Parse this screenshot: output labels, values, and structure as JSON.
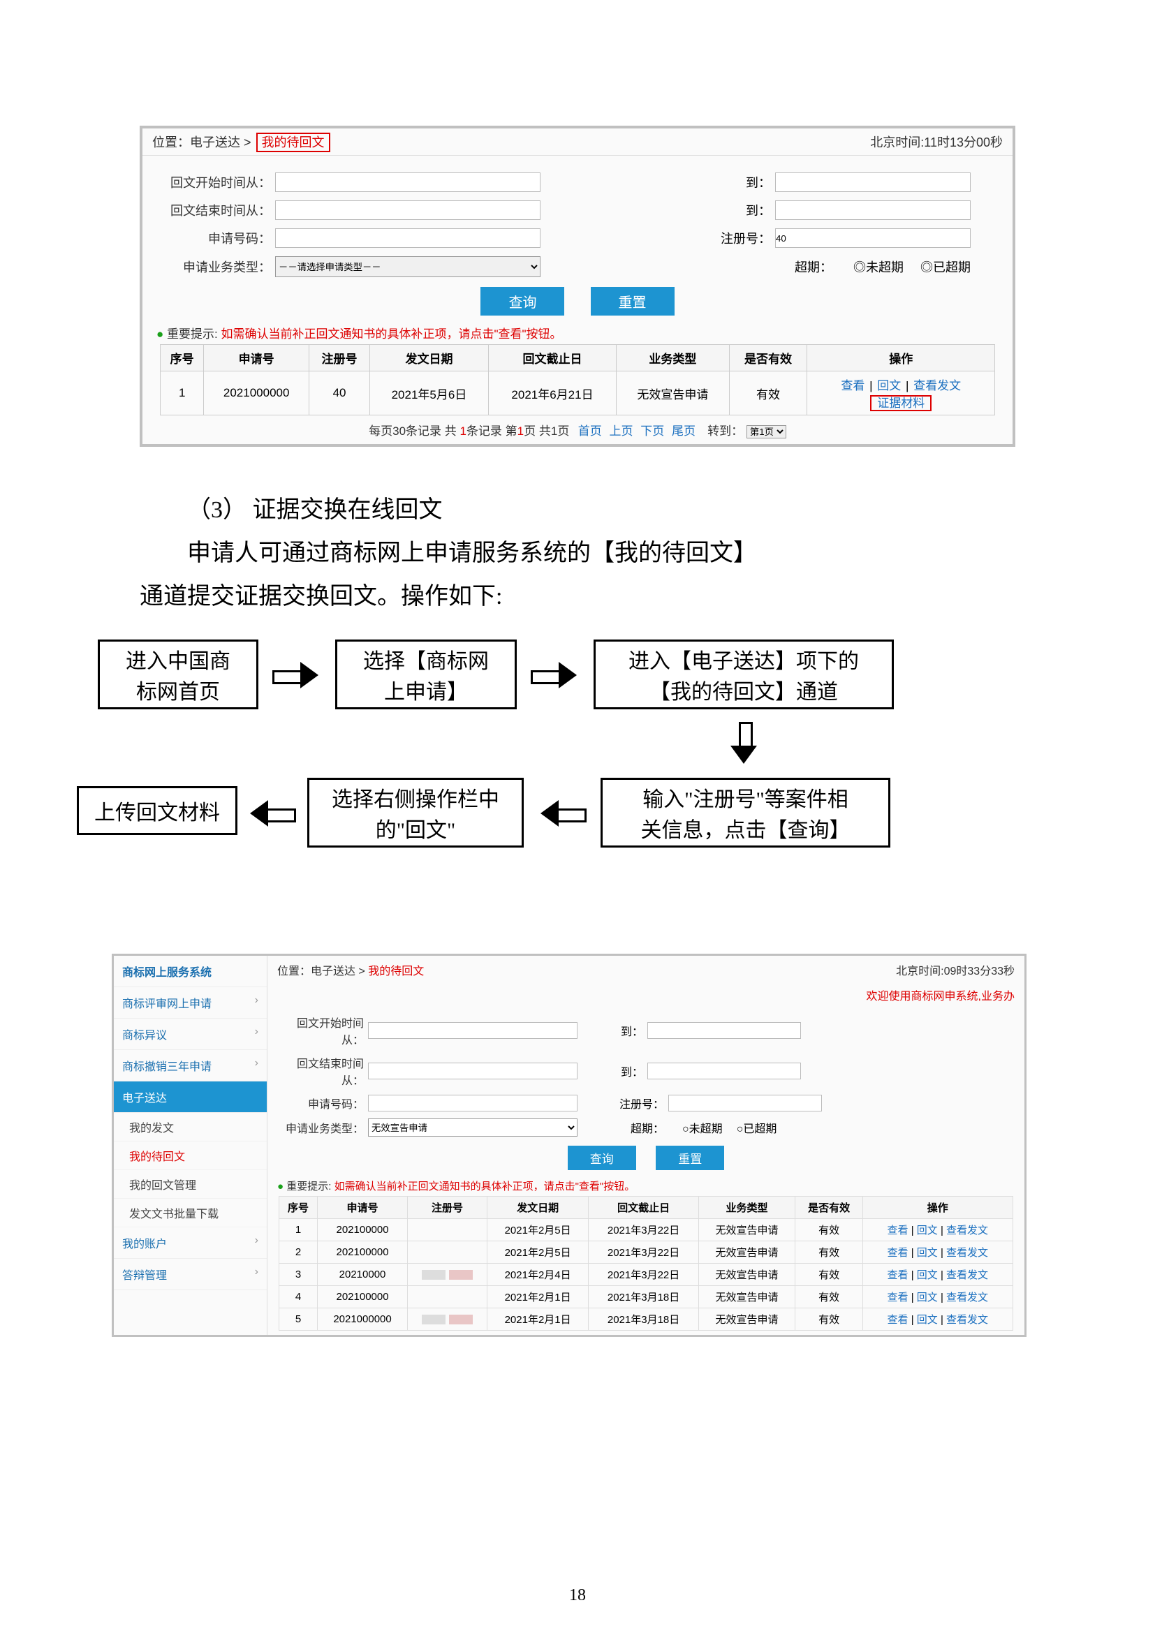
{
  "page_number": "18",
  "shot1": {
    "breadcrumb_prefix": "位置：电子送达",
    "breadcrumb_sep": " > ",
    "breadcrumb_link": "我的待回文",
    "time_label": "北京时间:11时13分00秒",
    "labels": {
      "start": "回文开始时间从：",
      "end": "回文结束时间从：",
      "app_no": "申请号码：",
      "biz_type": "申请业务类型：",
      "to": "到：",
      "reg_no": "注册号：",
      "overdue": "超期：",
      "type_placeholder": "－－请选择申请类型－－"
    },
    "reg_no_value": "40",
    "radio1": "未超期",
    "radio2": "已超期",
    "btn_query": "查询",
    "btn_reset": "重置",
    "tip_prefix": "● ",
    "tip_label": "重要提示: ",
    "tip_text": "如需确认当前补正回文通知书的具体补正项，请点击\"查看\"按钮。",
    "columns": [
      "序号",
      "申请号",
      "注册号",
      "发文日期",
      "回文截止日",
      "业务类型",
      "是否有效",
      "操作"
    ],
    "row": {
      "idx": "1",
      "app_no": "2021000000",
      "reg_no": "40",
      "send_date": "2021年5月6日",
      "deadline": "2021年6月21日",
      "biz": "无效宣告申请",
      "valid": "有效",
      "op1": "查看",
      "op2": "回文",
      "op3": "查看发文",
      "op4": "证据材料"
    },
    "pager": {
      "text1": "每页30条记录 共 ",
      "count": "1",
      "text2": "条记录 第",
      "page": "1",
      "text3": "页 共1页",
      "first": "首页",
      "prev": "上页",
      "next": "下页",
      "last": "尾页",
      "goto": "转到：",
      "pagesel": "第1页"
    }
  },
  "body": {
    "h": "（3） 证据交换在线回文",
    "p1": "申请人可通过商标网上申请服务系统的【我的待回文】",
    "p2": "通道提交证据交换回文。操作如下:"
  },
  "flow": {
    "b1a": "进入中国商",
    "b1b": "标网首页",
    "b2a": "选择【商标网",
    "b2b": "上申请】",
    "b3a": "进入【电子送达】项下的",
    "b3b": "【我的待回文】通道",
    "b4a": "输入\"注册号\"等案件相",
    "b4b": "关信息，点击【查询】",
    "b5a": "选择右侧操作栏中",
    "b5b": "的\"回文\"",
    "b6": "上传回文材料"
  },
  "shot2": {
    "side": {
      "title": "商标网上服务系统",
      "items": [
        {
          "label": "商标评审网上申请",
          "chev": "›"
        },
        {
          "label": "商标异议",
          "chev": "›"
        },
        {
          "label": "商标撤销三年申请",
          "chev": "›"
        }
      ],
      "active": "电子送达",
      "subs": [
        "我的发文",
        "我的待回文",
        "我的回文管理",
        "发文文书批量下载"
      ],
      "tail": [
        {
          "label": "我的账户",
          "chev": "›"
        },
        {
          "label": "答辩管理",
          "chev": "›"
        }
      ]
    },
    "breadcrumb_prefix": "位置：电子送达 > ",
    "breadcrumb_link": "我的待回文",
    "time_label": "北京时间:09时33分33秒",
    "welcome": "欢迎使用商标网申系统,业务办",
    "labels": {
      "start": "回文开始时间从：",
      "end": "回文结束时间从：",
      "app_no": "申请号码：",
      "biz_type": "申请业务类型：",
      "to": "到：",
      "reg_no": "注册号：",
      "overdue": "超期："
    },
    "type_value": "无效宣告申请",
    "radio1": "未超期",
    "radio2": "已超期",
    "btn_query": "查询",
    "btn_reset": "重置",
    "tip_prefix": "● ",
    "tip_label": "重要提示: ",
    "tip_text": "如需确认当前补正回文通知书的具体补正项，请点击\"查看\"按钮。",
    "columns": [
      "序号",
      "申请号",
      "注册号",
      "发文日期",
      "回文截止日",
      "业务类型",
      "是否有效",
      "操作"
    ],
    "rows": [
      {
        "idx": "1",
        "app": "202100000",
        "reg": "",
        "d1": "2021年2月5日",
        "d2": "2021年3月22日",
        "biz": "无效宣告申请",
        "v": "有效"
      },
      {
        "idx": "2",
        "app": "202100000",
        "reg": "",
        "d1": "2021年2月5日",
        "d2": "2021年3月22日",
        "biz": "无效宣告申请",
        "v": "有效"
      },
      {
        "idx": "3",
        "app": "20210000",
        "reg": "r",
        "d1": "2021年2月4日",
        "d2": "2021年3月22日",
        "biz": "无效宣告申请",
        "v": "有效"
      },
      {
        "idx": "4",
        "app": "202100000",
        "reg": "",
        "d1": "2021年2月1日",
        "d2": "2021年3月18日",
        "biz": "无效宣告申请",
        "v": "有效"
      },
      {
        "idx": "5",
        "app": "2021000000",
        "reg": "r",
        "d1": "2021年2月1日",
        "d2": "2021年3月18日",
        "biz": "无效宣告申请",
        "v": "有效"
      }
    ],
    "op1": "查看",
    "op2": "回文",
    "op3": "查看发文"
  }
}
